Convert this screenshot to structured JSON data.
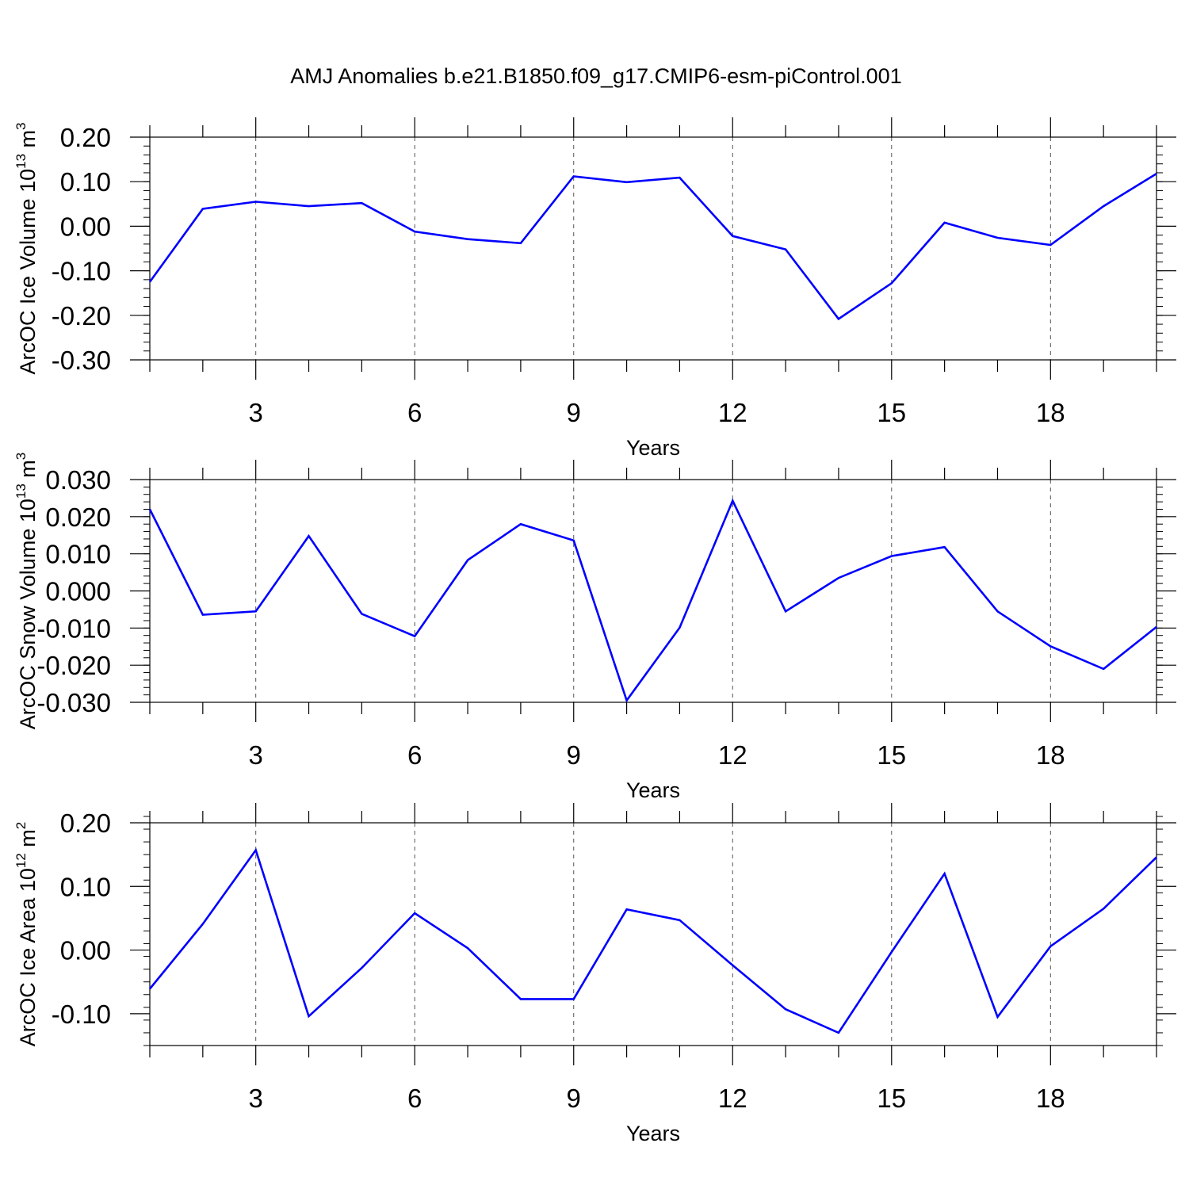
{
  "title": "AMJ Anomalies b.e21.B1850.f09_g17.CMIP6-esm-piControl.001",
  "line_color": "#0000ff",
  "chart_data": [
    {
      "type": "line",
      "ylabel": "ArcOC Ice Volume 10",
      "ylabel_exp": "13",
      "ylabel_unit": " m",
      "ylabel_unit_exp": "3",
      "xlabel": "Years",
      "xlim": [
        1,
        20
      ],
      "ylim": [
        -0.3,
        0.2
      ],
      "xticks": [
        3,
        6,
        9,
        12,
        15,
        18
      ],
      "xtick_labels": [
        "3",
        "6",
        "9",
        "12",
        "15",
        "18"
      ],
      "yticks": [
        0.2,
        0.1,
        0.0,
        -0.1,
        -0.2,
        -0.3
      ],
      "ytick_labels": [
        "0.20",
        "0.10",
        "0.00",
        "-0.10",
        "-0.20",
        "-0.30"
      ],
      "grid": "vertical dashed at major x ticks",
      "x": [
        1,
        2,
        3,
        4,
        5,
        6,
        7,
        8,
        9,
        10,
        11,
        12,
        13,
        14,
        15,
        16,
        17,
        18,
        19,
        20
      ],
      "values": [
        -0.125,
        0.039,
        0.055,
        0.045,
        0.052,
        -0.012,
        -0.029,
        -0.038,
        0.112,
        0.099,
        0.109,
        -0.022,
        -0.052,
        -0.208,
        -0.128,
        0.008,
        -0.026,
        -0.042,
        0.045,
        0.118
      ]
    },
    {
      "type": "line",
      "ylabel": "ArcOC Snow Volume 10",
      "ylabel_exp": "13",
      "ylabel_unit": " m",
      "ylabel_unit_exp": "3",
      "xlabel": "Years",
      "xlim": [
        1,
        20
      ],
      "ylim": [
        -0.03,
        0.03
      ],
      "xticks": [
        3,
        6,
        9,
        12,
        15,
        18
      ],
      "xtick_labels": [
        "3",
        "6",
        "9",
        "12",
        "15",
        "18"
      ],
      "yticks": [
        0.03,
        0.02,
        0.01,
        0.0,
        -0.01,
        -0.02,
        -0.03
      ],
      "ytick_labels": [
        "0.030",
        "0.020",
        "0.010",
        "0.000",
        "-0.010",
        "-0.020",
        "-0.030"
      ],
      "grid": "vertical dashed at major x ticks",
      "x": [
        1,
        2,
        3,
        4,
        5,
        6,
        7,
        8,
        9,
        10,
        11,
        12,
        13,
        14,
        15,
        16,
        17,
        18,
        19,
        20
      ],
      "values": [
        0.022,
        -0.0064,
        -0.0055,
        0.0148,
        -0.0062,
        -0.0122,
        0.0083,
        0.018,
        0.0136,
        -0.0295,
        -0.0099,
        0.0243,
        -0.0055,
        0.0035,
        0.0094,
        0.0118,
        -0.0055,
        -0.0149,
        -0.021,
        -0.0097
      ]
    },
    {
      "type": "line",
      "ylabel": "ArcOC Ice Area 10",
      "ylabel_exp": "12",
      "ylabel_unit": " m",
      "ylabel_unit_exp": "2",
      "xlabel": "Years",
      "xlim": [
        1,
        20
      ],
      "ylim": [
        -0.15,
        0.2
      ],
      "xticks": [
        3,
        6,
        9,
        12,
        15,
        18
      ],
      "xtick_labels": [
        "3",
        "6",
        "9",
        "12",
        "15",
        "18"
      ],
      "yticks": [
        0.2,
        0.1,
        0.0,
        -0.1
      ],
      "ytick_labels": [
        "0.20",
        "0.10",
        "0.00",
        "-0.10"
      ],
      "grid": "vertical dashed at major x ticks",
      "x": [
        1,
        2,
        3,
        4,
        5,
        6,
        7,
        8,
        9,
        10,
        11,
        12,
        13,
        14,
        15,
        16,
        17,
        18,
        19,
        20
      ],
      "values": [
        -0.061,
        0.041,
        0.157,
        -0.104,
        -0.028,
        0.058,
        0.003,
        -0.077,
        -0.077,
        0.064,
        0.047,
        -0.024,
        -0.093,
        -0.13,
        -0.003,
        0.12,
        -0.105,
        0.006,
        0.065,
        0.146
      ]
    }
  ]
}
